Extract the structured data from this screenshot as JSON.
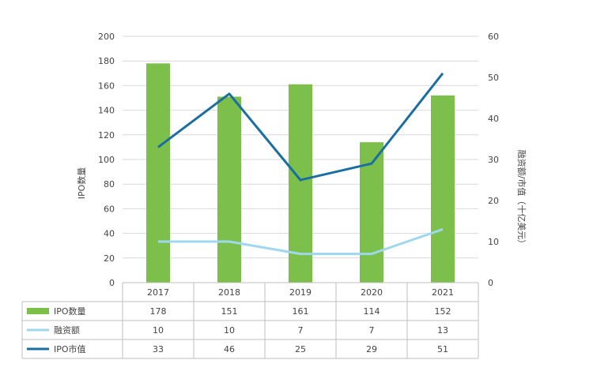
{
  "chart_data": {
    "type": "bar",
    "categories": [
      "2017",
      "2018",
      "2019",
      "2020",
      "2021"
    ],
    "y_left": {
      "label": "IPO数量",
      "ylim": [
        0,
        200
      ],
      "ticks": [
        0,
        20,
        40,
        60,
        80,
        100,
        120,
        140,
        160,
        180,
        200
      ]
    },
    "y_right": {
      "label": "融资额/市值（十亿美元）",
      "ylim": [
        0,
        60
      ],
      "ticks": [
        0,
        10,
        20,
        30,
        40,
        50,
        60
      ]
    },
    "series": [
      {
        "name": "IPO数量",
        "type": "bar",
        "axis": "left",
        "color": "#7cbf4a",
        "values": [
          178,
          151,
          161,
          114,
          152
        ]
      },
      {
        "name": "融资额",
        "type": "line",
        "axis": "right",
        "color": "#9fd8ee",
        "values": [
          10,
          10,
          7,
          7,
          13
        ]
      },
      {
        "name": "IPO市值",
        "type": "line",
        "axis": "right",
        "color": "#1a6fa0",
        "values": [
          33,
          46,
          25,
          29,
          51
        ]
      }
    ],
    "gridlines": true,
    "data_table": true
  }
}
